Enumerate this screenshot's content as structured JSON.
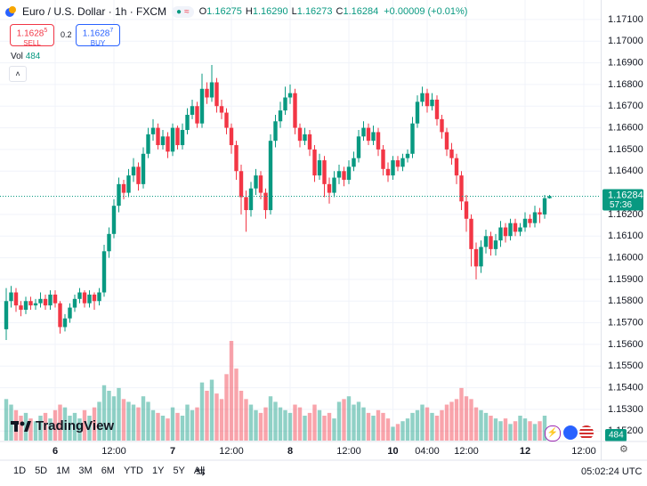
{
  "legend": {
    "symbol": "Euro / U.S. Dollar · 1h · FXCM",
    "ohlc": [
      {
        "key": "O",
        "value": "1.16275"
      },
      {
        "key": "H",
        "value": "1.16290"
      },
      {
        "key": "L",
        "value": "1.16273"
      },
      {
        "key": "C",
        "value": "1.16284"
      }
    ],
    "change": "+0.00009 (+0.01%)",
    "sell": {
      "price": "1.1628",
      "pip": "5",
      "label": "SELL"
    },
    "spread": "0.2",
    "buy": {
      "price": "1.1628",
      "pip": "7",
      "label": "BUY"
    },
    "vol_label": "Vol"
  },
  "brand": "TradingView",
  "countdown": "57:36",
  "timeframes": [
    "1D",
    "5D",
    "1M",
    "3M",
    "6M",
    "YTD",
    "1Y",
    "5Y",
    "All"
  ],
  "clock": "05:02:24 UTC",
  "chart_data": {
    "type": "candlestick",
    "up_color": "#089981",
    "down_color": "#f23645",
    "grid": true,
    "ylim": [
      1.1516,
      1.1719
    ],
    "yticks": [
      {
        "value": 1.171,
        "label": "1.17100"
      },
      {
        "value": 1.17,
        "label": "1.17000"
      },
      {
        "value": 1.169,
        "label": "1.16900"
      },
      {
        "value": 1.168,
        "label": "1.16800"
      },
      {
        "value": 1.167,
        "label": "1.16700"
      },
      {
        "value": 1.166,
        "label": "1.16600"
      },
      {
        "value": 1.165,
        "label": "1.16500"
      },
      {
        "value": 1.164,
        "label": "1.16400"
      },
      {
        "value": 1.162,
        "label": "1.16200"
      },
      {
        "value": 1.161,
        "label": "1.16100"
      },
      {
        "value": 1.16,
        "label": "1.16000"
      },
      {
        "value": 1.159,
        "label": "1.15900"
      },
      {
        "value": 1.158,
        "label": "1.15800"
      },
      {
        "value": 1.157,
        "label": "1.15700"
      },
      {
        "value": 1.156,
        "label": "1.15600"
      },
      {
        "value": 1.155,
        "label": "1.15500"
      },
      {
        "value": 1.154,
        "label": "1.15400"
      },
      {
        "value": 1.153,
        "label": "1.15300"
      },
      {
        "value": 1.152,
        "label": "1.15200"
      }
    ],
    "categories": [
      null,
      null,
      null,
      null,
      null,
      null,
      null,
      null,
      null,
      null,
      "6",
      null,
      null,
      null,
      null,
      null,
      null,
      null,
      null,
      null,
      null,
      null,
      "12:00",
      null,
      null,
      null,
      null,
      null,
      null,
      null,
      null,
      null,
      null,
      null,
      "7",
      null,
      null,
      null,
      null,
      null,
      null,
      null,
      null,
      null,
      null,
      null,
      "12:00",
      null,
      null,
      null,
      null,
      null,
      null,
      null,
      null,
      null,
      null,
      null,
      "8",
      null,
      null,
      null,
      null,
      null,
      null,
      null,
      null,
      null,
      null,
      null,
      "12:00",
      null,
      null,
      null,
      null,
      null,
      null,
      null,
      null,
      "10",
      null,
      null,
      null,
      null,
      null,
      null,
      "04:00",
      null,
      null,
      null,
      null,
      null,
      null,
      null,
      "12:00",
      null,
      null,
      null,
      null,
      null,
      null,
      null,
      null,
      null,
      null,
      null,
      "12",
      null,
      null,
      null,
      null,
      null,
      null,
      null,
      null,
      null,
      null,
      null,
      "12:00"
    ],
    "open": [
      1.1567,
      1.158,
      1.1584,
      1.1578,
      1.1576,
      1.158,
      1.1578,
      1.1579,
      1.1581,
      1.1578,
      1.1583,
      1.1579,
      1.1568,
      1.1572,
      1.1577,
      1.1581,
      1.1584,
      1.1579,
      1.1583,
      1.158,
      1.1584,
      1.1603,
      1.1611,
      1.1624,
      1.1634,
      1.163,
      1.1638,
      1.1642,
      1.1634,
      1.1648,
      1.1657,
      1.166,
      1.1652,
      1.1656,
      1.1649,
      1.166,
      1.1652,
      1.1659,
      1.1666,
      1.167,
      1.1662,
      1.1678,
      1.1674,
      1.1681,
      1.167,
      1.1667,
      1.166,
      1.1652,
      1.164,
      1.1628,
      1.1622,
      1.1632,
      1.1638,
      1.163,
      1.1622,
      1.1654,
      1.1663,
      1.1668,
      1.1674,
      1.1676,
      1.166,
      1.1654,
      1.1657,
      1.165,
      1.1638,
      1.1645,
      1.1634,
      1.163,
      1.1637,
      1.164,
      1.1636,
      1.1642,
      1.1646,
      1.1656,
      1.166,
      1.1654,
      1.1658,
      1.165,
      1.1641,
      1.1638,
      1.1645,
      1.1642,
      1.1646,
      1.1648,
      1.1662,
      1.1672,
      1.1676,
      1.167,
      1.1673,
      1.1664,
      1.1658,
      1.165,
      1.1646,
      1.1638,
      1.1626,
      1.1618,
      1.1604,
      1.1596,
      1.1605,
      1.161,
      1.1604,
      1.1608,
      1.1614,
      1.161,
      1.1616,
      1.1612,
      1.1614,
      1.1618,
      1.1616,
      1.1621,
      1.162,
      1.16275,
      null,
      null,
      null,
      null,
      null,
      null,
      null
    ],
    "high": [
      1.1586,
      1.1587,
      1.1586,
      1.158,
      1.1582,
      1.1582,
      1.1581,
      1.1584,
      1.1583,
      1.1585,
      1.1585,
      1.158,
      1.1574,
      1.1579,
      1.1583,
      1.1586,
      1.1585,
      1.1585,
      1.1584,
      1.1586,
      1.1606,
      1.1614,
      1.1627,
      1.1637,
      1.1636,
      1.1641,
      1.1646,
      1.1644,
      1.1651,
      1.166,
      1.1664,
      1.1662,
      1.1659,
      1.1658,
      1.1662,
      1.1661,
      1.1662,
      1.1669,
      1.1673,
      1.1672,
      1.1685,
      1.1681,
      1.1689,
      1.1683,
      1.1673,
      1.1669,
      1.1662,
      1.1654,
      1.1643,
      1.1631,
      1.1635,
      1.1641,
      1.164,
      1.1632,
      1.1657,
      1.1666,
      1.1672,
      1.1679,
      1.168,
      1.1678,
      1.1662,
      1.166,
      1.1659,
      1.1652,
      1.1648,
      1.1647,
      1.1637,
      1.164,
      1.1643,
      1.1642,
      1.1645,
      1.1649,
      1.1659,
      1.1663,
      1.1662,
      1.1661,
      1.166,
      1.1652,
      1.1644,
      1.1647,
      1.1647,
      1.1648,
      1.165,
      1.1665,
      1.1675,
      1.1679,
      1.1678,
      1.1676,
      1.1675,
      1.1666,
      1.166,
      1.1653,
      1.1648,
      1.164,
      1.1629,
      1.162,
      1.1607,
      1.1608,
      1.1613,
      1.1612,
      1.1611,
      1.1617,
      1.1616,
      1.1618,
      1.1618,
      1.1616,
      1.1621,
      1.162,
      1.1624,
      1.1623,
      1.1629,
      1.1629,
      null,
      null,
      null,
      null,
      null,
      null,
      null
    ],
    "low": [
      1.1562,
      1.1577,
      1.1575,
      1.1573,
      1.1574,
      1.1576,
      1.1576,
      1.1577,
      1.1576,
      1.1576,
      1.1577,
      1.1565,
      1.1566,
      1.157,
      1.1575,
      1.1579,
      1.1577,
      1.1577,
      1.1576,
      1.1578,
      1.1582,
      1.16,
      1.1609,
      1.1621,
      1.1627,
      1.1628,
      1.1635,
      1.1631,
      1.1632,
      1.1646,
      1.1654,
      1.165,
      1.165,
      1.1646,
      1.1647,
      1.165,
      1.165,
      1.1657,
      1.1664,
      1.166,
      1.166,
      1.1671,
      1.1672,
      1.1667,
      1.1664,
      1.1657,
      1.1648,
      1.1636,
      1.162,
      1.1612,
      1.1619,
      1.1629,
      1.1627,
      1.1618,
      1.162,
      1.1651,
      1.166,
      1.1666,
      1.1671,
      1.1657,
      1.1651,
      1.1652,
      1.1647,
      1.1635,
      1.1636,
      1.1628,
      1.1625,
      1.1628,
      1.1634,
      1.1633,
      1.1634,
      1.164,
      1.1644,
      1.1654,
      1.1652,
      1.1652,
      1.1647,
      1.1638,
      1.1635,
      1.1636,
      1.164,
      1.164,
      1.1644,
      1.1646,
      1.166,
      1.167,
      1.1667,
      1.1668,
      1.1661,
      1.1655,
      1.1647,
      1.1643,
      1.1634,
      1.1622,
      1.1612,
      1.1596,
      1.159,
      1.1593,
      1.1602,
      1.1601,
      1.1601,
      1.1605,
      1.1607,
      1.1608,
      1.161,
      1.161,
      1.1612,
      1.1614,
      1.1614,
      1.1616,
      1.1618,
      1.16273,
      null,
      null,
      null,
      null,
      null,
      null,
      null
    ],
    "close": [
      1.158,
      1.1584,
      1.1578,
      1.1576,
      1.158,
      1.1578,
      1.1579,
      1.1581,
      1.1578,
      1.1583,
      1.1579,
      1.1568,
      1.1572,
      1.1577,
      1.1581,
      1.1584,
      1.1579,
      1.1583,
      1.158,
      1.1584,
      1.1603,
      1.1611,
      1.1624,
      1.1634,
      1.163,
      1.1638,
      1.1642,
      1.1634,
      1.1648,
      1.1657,
      1.166,
      1.1652,
      1.1656,
      1.1649,
      1.166,
      1.1652,
      1.1659,
      1.1666,
      1.167,
      1.1662,
      1.1678,
      1.1674,
      1.1681,
      1.167,
      1.1667,
      1.166,
      1.1652,
      1.164,
      1.1628,
      1.1622,
      1.1632,
      1.1638,
      1.163,
      1.1622,
      1.1654,
      1.1663,
      1.1668,
      1.1674,
      1.1676,
      1.166,
      1.1654,
      1.1657,
      1.165,
      1.1638,
      1.1645,
      1.1634,
      1.163,
      1.1637,
      1.164,
      1.1636,
      1.1642,
      1.1646,
      1.1656,
      1.166,
      1.1654,
      1.1658,
      1.165,
      1.1641,
      1.1638,
      1.1645,
      1.1642,
      1.1646,
      1.1648,
      1.1662,
      1.1672,
      1.1676,
      1.167,
      1.1673,
      1.1664,
      1.1658,
      1.165,
      1.1646,
      1.1638,
      1.1626,
      1.1618,
      1.1604,
      1.1596,
      1.1605,
      1.161,
      1.1604,
      1.1608,
      1.1614,
      1.161,
      1.1616,
      1.1612,
      1.1614,
      1.1618,
      1.1616,
      1.1621,
      1.162,
      1.16275,
      1.16284,
      null,
      null,
      null,
      null,
      null,
      null,
      null
    ],
    "volume": [
      1500,
      1300,
      1100,
      900,
      1000,
      800,
      700,
      900,
      1000,
      800,
      1100,
      1300,
      1200,
      900,
      1000,
      800,
      1100,
      900,
      1200,
      1400,
      2000,
      1800,
      1600,
      1900,
      1500,
      1400,
      1300,
      1200,
      1600,
      1400,
      1100,
      1000,
      900,
      800,
      1200,
      1000,
      900,
      1300,
      1100,
      1200,
      2100,
      1800,
      2200,
      1700,
      1500,
      2400,
      3600,
      2600,
      1800,
      1500,
      1300,
      1100,
      1000,
      1200,
      1600,
      1400,
      1200,
      1100,
      1000,
      1300,
      1200,
      900,
      1000,
      1300,
      1100,
      900,
      1000,
      800,
      1400,
      1500,
      1600,
      1300,
      1400,
      1200,
      1000,
      900,
      1100,
      1000,
      800,
      500,
      600,
      700,
      800,
      1000,
      1100,
      1300,
      1200,
      1000,
      900,
      1100,
      1300,
      1400,
      1500,
      1900,
      1600,
      1500,
      1200,
      1100,
      1000,
      900,
      800,
      700,
      800,
      600,
      700,
      900,
      800,
      700,
      600,
      700,
      900,
      484,
      null,
      null,
      null,
      null,
      null,
      null,
      null
    ]
  }
}
